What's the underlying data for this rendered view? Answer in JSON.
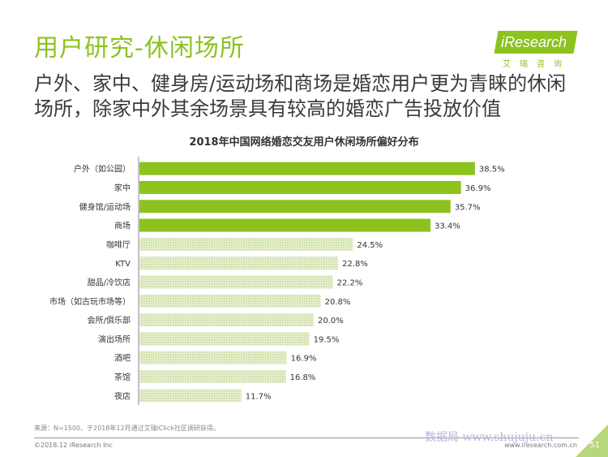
{
  "header": {
    "title": "用户研究-休闲场所",
    "subtitle": "户外、家中、健身房/运动场和商场是婚恋用户更为青睐的休闲场所，除家中外其余场景具有较高的婚恋广告投放价值"
  },
  "logo": {
    "text": "iResearch",
    "sub": "艾瑞咨询"
  },
  "colors": {
    "accent": "#8dc21f",
    "bar_light": "#dbe9b8"
  },
  "chart_data": {
    "type": "bar",
    "orientation": "horizontal",
    "title": "2018年中国网络婚恋交友用户休闲场所偏好分布",
    "categories": [
      "户外（如公园）",
      "家中",
      "健身馆/运动场",
      "商场",
      "咖啡厅",
      "KTV",
      "甜品/冷饮店",
      "市场（如古玩市场等）",
      "会所/俱乐部",
      "演出场所",
      "酒吧",
      "茶馆",
      "夜店"
    ],
    "values": [
      38.5,
      36.9,
      35.7,
      33.4,
      24.5,
      22.8,
      22.2,
      20.8,
      20.0,
      19.5,
      16.9,
      16.8,
      11.7
    ],
    "value_labels": [
      "38.5%",
      "36.9%",
      "35.7%",
      "33.4%",
      "24.5%",
      "22.8%",
      "22.2%",
      "20.8%",
      "20.0%",
      "19.5%",
      "16.9%",
      "16.8%",
      "11.7%"
    ],
    "highlighted_count": 4,
    "unit": "%",
    "grid": false,
    "legend": "none"
  },
  "footer": {
    "source": "来源：N=1500，于2018年12月通过艾瑞iClick社区调研获得。",
    "copyright": "©2018.12 iResearch Inc",
    "website": "www.iresearch.com.cn",
    "page_number": "51",
    "watermark": "数据局 www.shujuju.cn"
  }
}
